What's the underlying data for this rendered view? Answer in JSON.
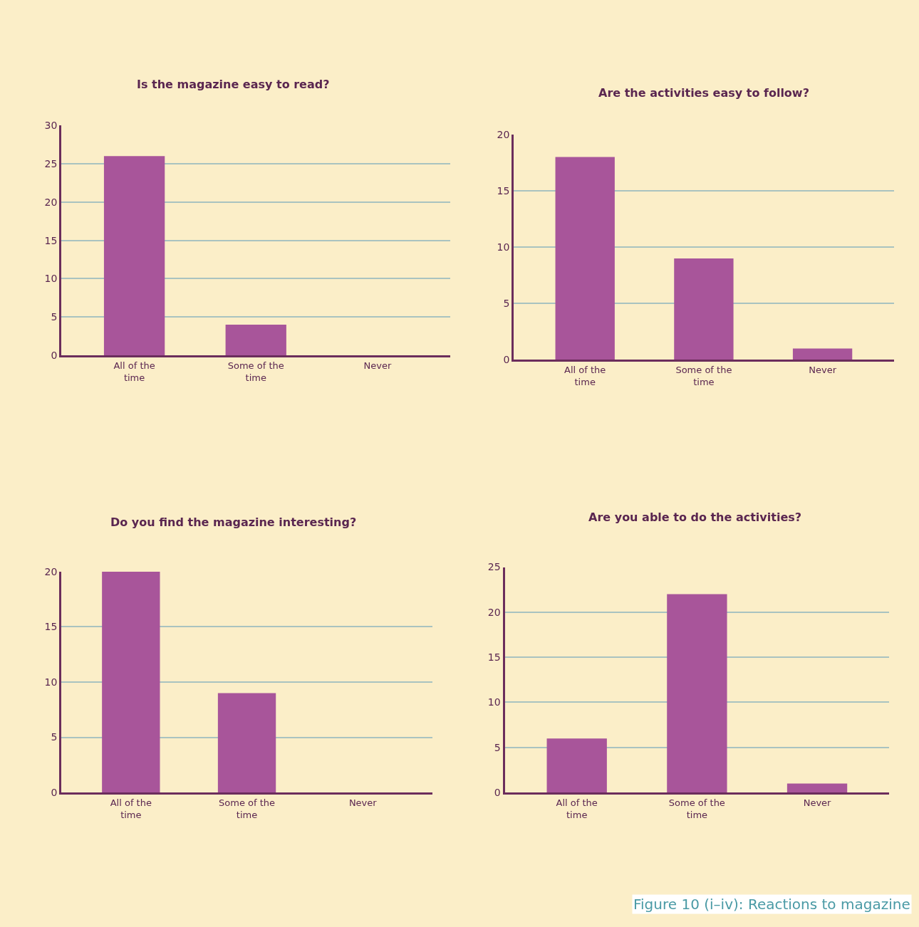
{
  "chart_data": [
    {
      "type": "bar",
      "title": "Is the magazine easy to read?",
      "categories": [
        "All of the\ntime",
        "Some of the\ntime",
        "Never"
      ],
      "values": [
        26,
        4,
        0
      ],
      "color": "#a8559a",
      "ylim": [
        0,
        30
      ],
      "yticks": [
        0,
        5,
        10,
        15,
        20,
        25,
        30
      ],
      "grid": "y"
    },
    {
      "type": "bar",
      "title": "Are the activities easy to follow?",
      "categories": [
        "All of the\ntime",
        "Some of the\ntime",
        "Never"
      ],
      "values": [
        18,
        9,
        1
      ],
      "color": "#a8559a",
      "ylim": [
        0,
        20
      ],
      "yticks": [
        0,
        5,
        10,
        15,
        20
      ],
      "grid": "y"
    },
    {
      "type": "bar",
      "title": "Do you find the magazine interesting?",
      "categories": [
        "All of the\ntime",
        "Some of the\ntime",
        "Never"
      ],
      "values": [
        20,
        9,
        0
      ],
      "color": "#a8559a",
      "ylim": [
        0,
        20
      ],
      "yticks": [
        0,
        5,
        10,
        15,
        20
      ],
      "grid": "y"
    },
    {
      "type": "bar",
      "title": "Are you able to do the activities?",
      "categories": [
        "All of the\ntime",
        "Some of the\ntime",
        "Never"
      ],
      "values": [
        6,
        22,
        1
      ],
      "color": "#a8559a",
      "ylim": [
        0,
        25
      ],
      "yticks": [
        0,
        5,
        10,
        15,
        20,
        25
      ],
      "grid": "y",
      "annotations": [
        "Figure 10 (i–iv): Reactions to magazine"
      ]
    }
  ]
}
